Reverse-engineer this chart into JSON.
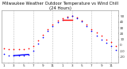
{
  "title": "Milwaukee Weather Outdoor Temperature vs Wind Chill (24 Hours)",
  "title_fontsize": 3.8,
  "bg_color": "#ffffff",
  "plot_bg_color": "#ffffff",
  "grid_color": "#aaaaaa",
  "hours": [
    1,
    2,
    3,
    4,
    5,
    6,
    7,
    8,
    9,
    10,
    11,
    12,
    13,
    14,
    15,
    16,
    17,
    18,
    19,
    20,
    21,
    22,
    23,
    24
  ],
  "temp": [
    -5,
    -7,
    -7,
    -7,
    -7,
    -6,
    -2,
    8,
    18,
    28,
    36,
    42,
    46,
    49,
    50,
    48,
    43,
    36,
    28,
    22,
    16,
    10,
    5,
    -2
  ],
  "wind_chill": [
    -15,
    -18,
    -18,
    -18,
    -18,
    -16,
    -10,
    2,
    14,
    24,
    33,
    39,
    44,
    48,
    50,
    47,
    41,
    33,
    24,
    17,
    10,
    4,
    -2,
    -8
  ],
  "wind_chill_line_start": 13,
  "wind_chill_line_end": 15,
  "temp_color": "#ff0000",
  "wind_chill_dot_color": "#0000ff",
  "wind_chill_line_color": "#ff0000",
  "dot_size": 1.2,
  "line_width": 1.0,
  "ylim": [
    -30,
    60
  ],
  "xlim": [
    0.5,
    24.5
  ],
  "ytick_values": [
    -20,
    -10,
    0,
    10,
    20,
    30,
    40,
    50
  ],
  "ytick_labels": [
    "-20",
    "-10",
    "0",
    "10",
    "20",
    "30",
    "40",
    "50"
  ],
  "tick_fontsize": 3.0,
  "spine_color": "#888888",
  "grid_every": 4,
  "grid_start": 3
}
